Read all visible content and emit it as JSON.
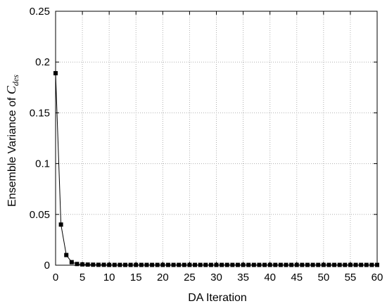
{
  "chart_data": {
    "type": "line",
    "title": "",
    "xlabel": "DA Iteration",
    "ylabel": {
      "prefix": "Ensemble Variance of ",
      "symbol": "C",
      "subscript": "des"
    },
    "xlim": [
      0,
      60
    ],
    "ylim": [
      0,
      0.25
    ],
    "xticks": [
      0,
      5,
      10,
      15,
      20,
      25,
      30,
      35,
      40,
      45,
      50,
      55,
      60
    ],
    "yticks": [
      0,
      0.05,
      0.1,
      0.15,
      0.2,
      0.25
    ],
    "ytick_labels": [
      "0",
      "0.05",
      "0.1",
      "0.15",
      "0.2",
      "0.25"
    ],
    "xtick_labels": [
      "0",
      "5",
      "10",
      "15",
      "20",
      "25",
      "30",
      "35",
      "40",
      "45",
      "50",
      "55",
      "60"
    ],
    "grid": true,
    "legend": "none",
    "series": [
      {
        "marker": "square",
        "color": "#000000",
        "x": [
          0,
          1,
          2,
          3,
          4,
          5,
          6,
          7,
          8,
          9,
          10,
          11,
          12,
          13,
          14,
          15,
          16,
          17,
          18,
          19,
          20,
          21,
          22,
          23,
          24,
          25,
          26,
          27,
          28,
          29,
          30,
          31,
          32,
          33,
          34,
          35,
          36,
          37,
          38,
          39,
          40,
          41,
          42,
          43,
          44,
          45,
          46,
          47,
          48,
          49,
          50,
          51,
          52,
          53,
          54,
          55,
          56,
          57,
          58,
          59,
          60
        ],
        "y": [
          0.189,
          0.04,
          0.01,
          0.003,
          0.0012,
          0.0008,
          0.0006,
          0.0005,
          0.0004,
          0.0004,
          0.0003,
          0.0003,
          0.0003,
          0.0003,
          0.0003,
          0.0003,
          0.0003,
          0.0003,
          0.0003,
          0.0003,
          0.0003,
          0.0003,
          0.0003,
          0.0003,
          0.0003,
          0.0003,
          0.0003,
          0.0003,
          0.0003,
          0.0003,
          0.0003,
          0.0003,
          0.0003,
          0.0003,
          0.0003,
          0.0003,
          0.0003,
          0.0003,
          0.0003,
          0.0003,
          0.0003,
          0.0003,
          0.0003,
          0.0003,
          0.0003,
          0.0003,
          0.0003,
          0.0003,
          0.0003,
          0.0003,
          0.0003,
          0.0003,
          0.0003,
          0.0003,
          0.0003,
          0.0003,
          0.0003,
          0.0003,
          0.0003,
          0.0003,
          0.0003
        ]
      }
    ]
  }
}
